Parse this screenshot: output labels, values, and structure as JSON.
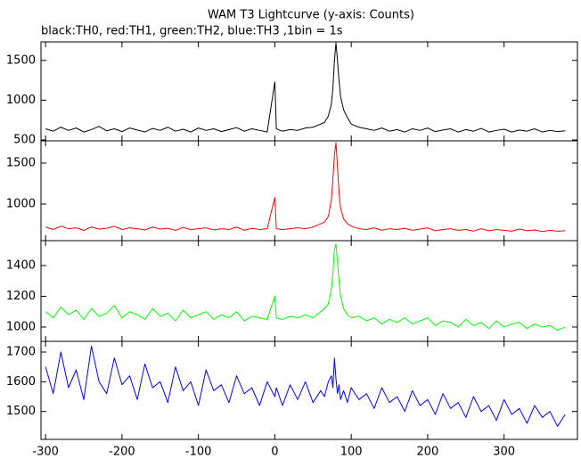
{
  "chart_data": [
    {
      "type": "line",
      "title": "WAM T3 Lightcurve (y-axis: Counts)",
      "subtitle": "black:TH0, red:TH1, green:TH2, blue:TH3 ,1bin = 1s",
      "x": [
        -300,
        -290,
        -280,
        -270,
        -260,
        -250,
        -240,
        -230,
        -220,
        -210,
        -200,
        -190,
        -180,
        -170,
        -160,
        -150,
        -140,
        -130,
        -120,
        -110,
        -100,
        -90,
        -80,
        -70,
        -60,
        -50,
        -40,
        -30,
        -20,
        -10,
        0,
        2,
        10,
        20,
        30,
        40,
        50,
        60,
        65,
        70,
        74,
        76,
        78,
        80,
        82,
        84,
        86,
        90,
        95,
        100,
        110,
        120,
        130,
        140,
        150,
        160,
        170,
        180,
        190,
        200,
        210,
        220,
        230,
        240,
        250,
        260,
        270,
        280,
        290,
        300,
        310,
        320,
        330,
        340,
        350,
        360,
        370,
        380
      ],
      "series": [
        {
          "color": "#000000",
          "values": [
            640,
            610,
            660,
            620,
            650,
            600,
            630,
            670,
            615,
            640,
            605,
            650,
            625,
            600,
            645,
            620,
            660,
            610,
            635,
            600,
            650,
            620,
            640,
            605,
            630,
            655,
            610,
            640,
            620,
            600,
            1230,
            640,
            610,
            630,
            620,
            650,
            660,
            700,
            720,
            800,
            950,
            1150,
            1500,
            1720,
            1500,
            1250,
            1050,
            880,
            780,
            700,
            660,
            640,
            620,
            650,
            610,
            630,
            600,
            640,
            620,
            650,
            605,
            625,
            640,
            600,
            630,
            610,
            645,
            600,
            620,
            635,
            600,
            625,
            610,
            640,
            600,
            620,
            605,
            615
          ]
        }
      ],
      "xlim": [
        -306,
        396
      ],
      "ylim": [
        489,
        1733
      ],
      "yticks": [
        500,
        1000,
        1500
      ]
    },
    {
      "type": "line",
      "x": [
        -300,
        -290,
        -280,
        -270,
        -260,
        -250,
        -240,
        -230,
        -220,
        -210,
        -200,
        -190,
        -180,
        -170,
        -160,
        -150,
        -140,
        -130,
        -120,
        -110,
        -100,
        -90,
        -80,
        -70,
        -60,
        -50,
        -40,
        -30,
        -20,
        -10,
        0,
        2,
        10,
        20,
        30,
        40,
        50,
        60,
        65,
        70,
        74,
        76,
        78,
        80,
        82,
        84,
        86,
        90,
        95,
        100,
        110,
        120,
        130,
        140,
        150,
        160,
        170,
        180,
        190,
        200,
        210,
        220,
        230,
        240,
        250,
        260,
        270,
        280,
        290,
        300,
        310,
        320,
        330,
        340,
        350,
        360,
        370,
        380
      ],
      "series": [
        {
          "color": "#ff0000",
          "values": [
            720,
            690,
            730,
            700,
            710,
            680,
            720,
            695,
            705,
            730,
            690,
            710,
            700,
            685,
            720,
            695,
            705,
            680,
            715,
            690,
            700,
            710,
            685,
            700,
            690,
            720,
            680,
            705,
            690,
            700,
            1080,
            700,
            690,
            700,
            710,
            700,
            720,
            760,
            780,
            850,
            1050,
            1300,
            1600,
            1750,
            1450,
            1150,
            950,
            820,
            760,
            730,
            700,
            690,
            710,
            680,
            700,
            690,
            705,
            680,
            695,
            710,
            675,
            690,
            700,
            680,
            690,
            670,
            700,
            675,
            690,
            680,
            670,
            695,
            675,
            685,
            665,
            680,
            670,
            675
          ]
        }
      ],
      "xlim": [
        -306,
        396
      ],
      "ylim": [
        554,
        1772
      ],
      "yticks": [
        1000,
        1500
      ]
    },
    {
      "type": "line",
      "x": [
        -300,
        -290,
        -280,
        -270,
        -260,
        -250,
        -240,
        -230,
        -220,
        -210,
        -200,
        -190,
        -180,
        -170,
        -160,
        -150,
        -140,
        -130,
        -120,
        -110,
        -100,
        -90,
        -80,
        -70,
        -60,
        -50,
        -40,
        -30,
        -20,
        -10,
        0,
        2,
        10,
        20,
        30,
        40,
        50,
        60,
        65,
        70,
        74,
        76,
        78,
        80,
        82,
        84,
        86,
        90,
        95,
        100,
        110,
        120,
        130,
        140,
        150,
        160,
        170,
        180,
        190,
        200,
        210,
        220,
        230,
        240,
        250,
        260,
        270,
        280,
        290,
        300,
        310,
        320,
        330,
        340,
        350,
        360,
        370,
        380
      ],
      "series": [
        {
          "color": "#00ff00",
          "values": [
            1100,
            1060,
            1130,
            1080,
            1110,
            1050,
            1120,
            1070,
            1090,
            1140,
            1060,
            1100,
            1080,
            1050,
            1120,
            1070,
            1090,
            1040,
            1110,
            1060,
            1080,
            1100,
            1050,
            1080,
            1060,
            1100,
            1040,
            1070,
            1060,
            1050,
            1200,
            1060,
            1050,
            1070,
            1060,
            1080,
            1060,
            1100,
            1120,
            1150,
            1250,
            1350,
            1500,
            1540,
            1420,
            1300,
            1200,
            1120,
            1080,
            1060,
            1070,
            1040,
            1060,
            1020,
            1050,
            1030,
            1060,
            1020,
            1040,
            1060,
            1010,
            1040,
            1030,
            1000,
            1050,
            1010,
            1030,
            990,
            1040,
            1000,
            1020,
            1030,
            990,
            1020,
            1000,
            1010,
            980,
            1000
          ]
        }
      ],
      "xlim": [
        -306,
        396
      ],
      "ylim": [
        907,
        1562
      ],
      "yticks": [
        1000,
        1200,
        1400
      ]
    },
    {
      "type": "line",
      "x": [
        -300,
        -290,
        -280,
        -270,
        -260,
        -250,
        -240,
        -230,
        -220,
        -210,
        -200,
        -190,
        -180,
        -170,
        -160,
        -150,
        -140,
        -130,
        -120,
        -110,
        -100,
        -90,
        -80,
        -70,
        -60,
        -50,
        -40,
        -30,
        -20,
        -10,
        0,
        2,
        10,
        20,
        30,
        40,
        50,
        60,
        65,
        70,
        74,
        76,
        78,
        80,
        82,
        84,
        86,
        90,
        95,
        100,
        110,
        120,
        130,
        140,
        150,
        160,
        170,
        180,
        190,
        200,
        210,
        220,
        230,
        240,
        250,
        260,
        270,
        280,
        290,
        300,
        310,
        320,
        330,
        340,
        350,
        360,
        370,
        380
      ],
      "series": [
        {
          "color": "#0000ff",
          "values": [
            1650,
            1560,
            1700,
            1580,
            1640,
            1540,
            1720,
            1600,
            1560,
            1680,
            1590,
            1620,
            1540,
            1660,
            1580,
            1600,
            1530,
            1650,
            1570,
            1600,
            1520,
            1640,
            1570,
            1590,
            1530,
            1620,
            1560,
            1580,
            1520,
            1600,
            1550,
            1580,
            1520,
            1590,
            1540,
            1600,
            1530,
            1570,
            1550,
            1600,
            1620,
            1580,
            1680,
            1610,
            1560,
            1590,
            1540,
            1570,
            1530,
            1580,
            1540,
            1560,
            1510,
            1580,
            1530,
            1550,
            1500,
            1570,
            1520,
            1540,
            1490,
            1560,
            1510,
            1530,
            1480,
            1550,
            1500,
            1520,
            1470,
            1540,
            1490,
            1510,
            1460,
            1520,
            1480,
            1500,
            1450,
            1490
          ]
        }
      ],
      "xlim": [
        -306,
        396
      ],
      "ylim": [
        1406,
        1736
      ],
      "yticks": [
        1500,
        1600,
        1700
      ],
      "xticks": [
        -300,
        -200,
        -100,
        0,
        100,
        200,
        300
      ]
    }
  ]
}
